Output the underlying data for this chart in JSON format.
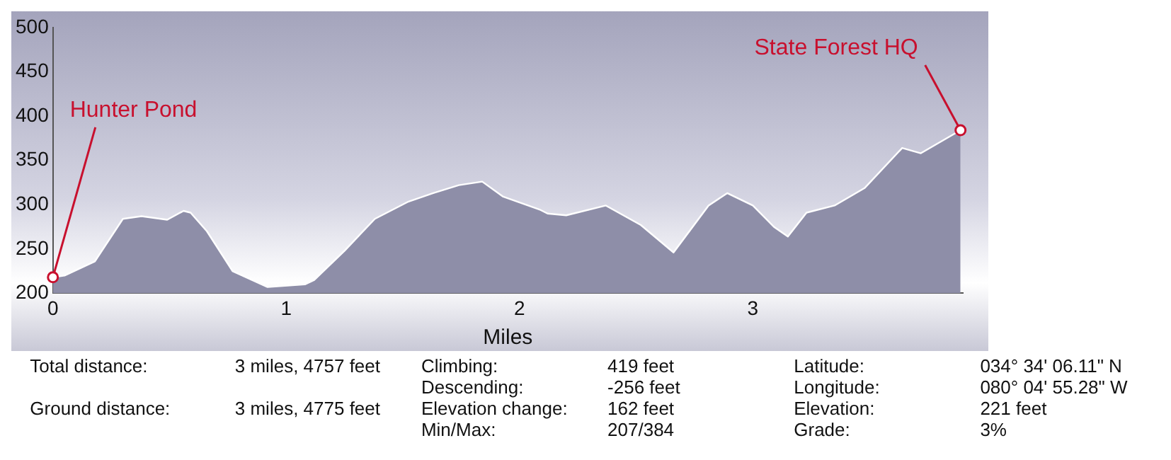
{
  "chart_data": {
    "type": "area",
    "xlabel": "Miles",
    "x": [
      0,
      0.05,
      0.18,
      0.3,
      0.38,
      0.49,
      0.56,
      0.59,
      0.66,
      0.77,
      0.92,
      1.08,
      1.12,
      1.25,
      1.38,
      1.52,
      1.63,
      1.74,
      1.84,
      1.93,
      2.09,
      2.12,
      2.2,
      2.37,
      2.52,
      2.66,
      2.81,
      2.89,
      3.0,
      3.09,
      3.15,
      3.23,
      3.35,
      3.48,
      3.64,
      3.72,
      3.89
    ],
    "series": [
      {
        "color": "#8e8ea8",
        "values": [
          218,
          220,
          236,
          284,
          287,
          283,
          293,
          291,
          270,
          225,
          207,
          210,
          215,
          248,
          284,
          303,
          313,
          322,
          326,
          309,
          294,
          290,
          288,
          299,
          277,
          246,
          299,
          313,
          299,
          275,
          264,
          291,
          299,
          319,
          364,
          358,
          384
        ]
      }
    ],
    "xlim": [
      0,
      3.9
    ],
    "xticks": [
      0,
      1,
      2,
      3
    ],
    "ylim": [
      200,
      500
    ],
    "yticks": [
      200,
      250,
      300,
      350,
      400,
      450,
      500
    ],
    "grid": false,
    "legend": false,
    "annotations": [
      {
        "text": "Hunter Pond",
        "x": 0,
        "y": 218
      },
      {
        "text": "State Forest HQ",
        "x": 3.89,
        "y": 384
      },
      "Total distance:",
      "3 miles, 4757 feet",
      "Ground distance:",
      "3 miles, 4775 feet",
      "Climbing:",
      "419 feet",
      "Descending:",
      "-256 feet",
      "Elevation change:",
      "162 feet",
      "Min/Max:",
      "207/384",
      "Latitude:",
      "034° 34' 06.11\" N",
      "Longitude:",
      "080° 04' 55.28\" W",
      "Elevation:",
      "221 feet",
      "Grade:",
      "3%"
    ]
  }
}
